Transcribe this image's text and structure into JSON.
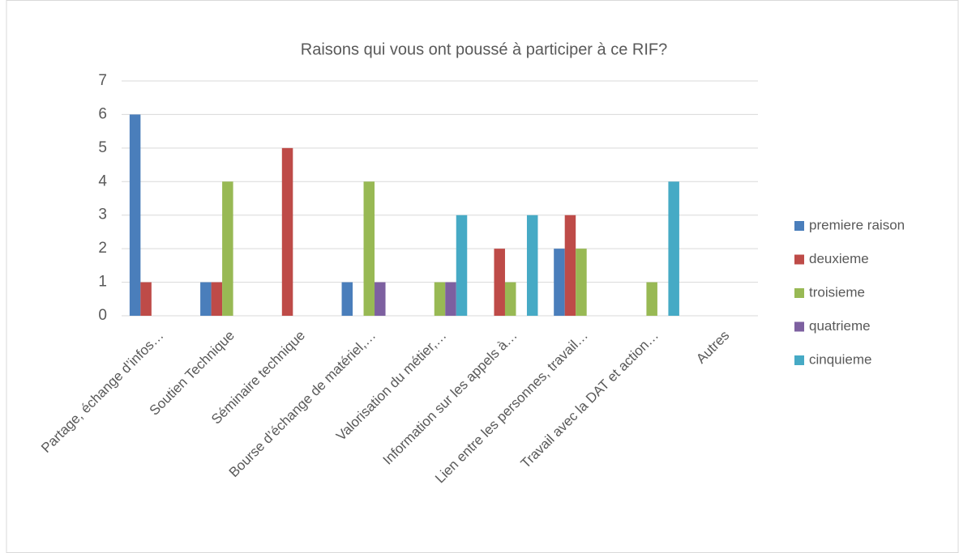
{
  "chart_data": {
    "type": "bar",
    "title": "Raisons qui vous ont poussé à participer à ce RIF?",
    "categories": [
      "Partage, échange d’infos…",
      "Soutien Technique",
      "Séminaire technique",
      "Bourse d’échange de matériel,…",
      "Valorisation du métier,…",
      "Information sur les appels à…",
      "Lien entre les personnes, travail…",
      "Travail avec la DAT et action…",
      "Autres"
    ],
    "series": [
      {
        "name": "premiere raison",
        "color": "#4a7ebb",
        "values": [
          6,
          1,
          0,
          1,
          0,
          0,
          2,
          0,
          0
        ]
      },
      {
        "name": "deuxieme",
        "color": "#be4b48",
        "values": [
          1,
          1,
          5,
          0,
          0,
          2,
          3,
          0,
          0
        ]
      },
      {
        "name": "troisieme",
        "color": "#98b954",
        "values": [
          0,
          4,
          0,
          4,
          1,
          1,
          2,
          1,
          0
        ]
      },
      {
        "name": "quatrieme",
        "color": "#7d60a0",
        "values": [
          0,
          0,
          0,
          1,
          1,
          0,
          0,
          0,
          0
        ]
      },
      {
        "name": "cinquieme",
        "color": "#46aac5",
        "values": [
          0,
          0,
          0,
          0,
          3,
          3,
          0,
          4,
          0
        ]
      }
    ],
    "ylim": [
      0,
      7
    ],
    "yticks": [
      0,
      1,
      2,
      3,
      4,
      5,
      6,
      7
    ],
    "grid": true,
    "legend": "right"
  }
}
